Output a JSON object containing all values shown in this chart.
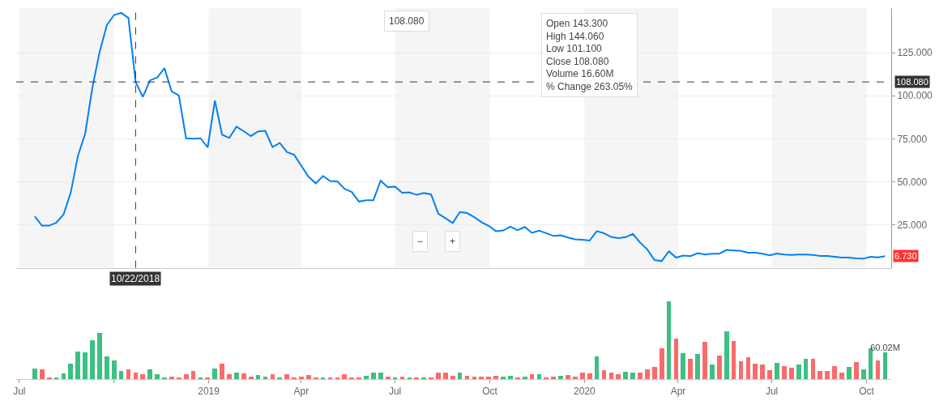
{
  "chart_data": [
    {
      "type": "line",
      "color": "#0081f2",
      "x": [
        "2018-07-16",
        "2018-07-23",
        "2018-07-30",
        "2018-08-06",
        "2018-08-13",
        "2018-08-20",
        "2018-08-27",
        "2018-09-03",
        "2018-09-10",
        "2018-09-17",
        "2018-09-24",
        "2018-10-01",
        "2018-10-08",
        "2018-10-15",
        "2018-10-22",
        "2018-10-29",
        "2018-11-05",
        "2018-11-12",
        "2018-11-19",
        "2018-11-26",
        "2018-12-03",
        "2018-12-10",
        "2018-12-17",
        "2018-12-24",
        "2018-12-31",
        "2019-01-07",
        "2019-01-14",
        "2019-01-21",
        "2019-01-28",
        "2019-02-04",
        "2019-02-11",
        "2019-02-18",
        "2019-02-25",
        "2019-03-04",
        "2019-03-11",
        "2019-03-18",
        "2019-03-25",
        "2019-04-01",
        "2019-04-08",
        "2019-04-15",
        "2019-04-22",
        "2019-04-29",
        "2019-05-06",
        "2019-05-13",
        "2019-05-20",
        "2019-05-27",
        "2019-06-03",
        "2019-06-10",
        "2019-06-17",
        "2019-06-24",
        "2019-07-01",
        "2019-07-08",
        "2019-07-15",
        "2019-07-22",
        "2019-07-29",
        "2019-08-05",
        "2019-08-12",
        "2019-08-19",
        "2019-08-26",
        "2019-09-02",
        "2019-09-09",
        "2019-09-16",
        "2019-09-23",
        "2019-09-30",
        "2019-10-07",
        "2019-10-14",
        "2019-10-21",
        "2019-10-28",
        "2019-11-04",
        "2019-11-11",
        "2019-11-18",
        "2019-11-25",
        "2019-12-02",
        "2019-12-09",
        "2019-12-16",
        "2019-12-23",
        "2019-12-30",
        "2020-01-06",
        "2020-01-13",
        "2020-01-20",
        "2020-01-27",
        "2020-02-03",
        "2020-02-10",
        "2020-02-17",
        "2020-02-24",
        "2020-03-02",
        "2020-03-09",
        "2020-03-16",
        "2020-03-23",
        "2020-03-30",
        "2020-04-06",
        "2020-04-13",
        "2020-04-20",
        "2020-04-27",
        "2020-05-04",
        "2020-05-11",
        "2020-05-18",
        "2020-05-25",
        "2020-06-01",
        "2020-06-08",
        "2020-06-15",
        "2020-06-22",
        "2020-06-29",
        "2020-07-06",
        "2020-07-13",
        "2020-07-20",
        "2020-07-27",
        "2020-08-03",
        "2020-08-10",
        "2020-08-17",
        "2020-08-24",
        "2020-08-31",
        "2020-09-07",
        "2020-09-14",
        "2020-09-21",
        "2020-09-28",
        "2020-10-05",
        "2020-10-12",
        "2020-10-19"
      ],
      "values": [
        29.9,
        24.5,
        24.5,
        26.2,
        31.0,
        43.8,
        65.2,
        78.0,
        104.7,
        125.5,
        141,
        147,
        148.2,
        145.3,
        108.08,
        99.4,
        109,
        110.6,
        116.1,
        102.6,
        100.2,
        75.3,
        75.0,
        75.3,
        70.0,
        97.2,
        77.4,
        75.5,
        82.1,
        79.4,
        76.6,
        79.3,
        79.6,
        70.2,
        72.6,
        67.3,
        65.7,
        59.3,
        52.9,
        49.1,
        53.4,
        50.4,
        50.2,
        45.9,
        44.0,
        38.5,
        39.2,
        39.3,
        50.7,
        46.8,
        47.2,
        43.6,
        43.8,
        42.4,
        43.5,
        42.7,
        31.5,
        28.8,
        26.0,
        32.4,
        31.8,
        29.4,
        26.5,
        24.4,
        21.3,
        21.7,
        23.9,
        21.9,
        23.7,
        20.3,
        21.6,
        20.1,
        18.5,
        18.9,
        17.6,
        16.5,
        16.3,
        15.8,
        21.3,
        20.1,
        17.9,
        17.3,
        17.8,
        19.7,
        14.7,
        10.7,
        4.5,
        3.9,
        9.6,
        5.9,
        7.1,
        6.8,
        8.5,
        7.7,
        8.2,
        8.2,
        10.4,
        10.1,
        9.8,
        8.8,
        8.8,
        8.2,
        7.2,
        8.3,
        7.7,
        7.5,
        7.7,
        7.7,
        7.5,
        6.9,
        6.9,
        6.4,
        5.9,
        5.9,
        5.5,
        5.3,
        6.4,
        6.1,
        6.73
      ],
      "xlim": [
        "2018-06-28",
        "2020-10-25"
      ],
      "ylim": [
        0,
        151
      ],
      "yticks": [
        {
          "value": 25,
          "label": "25.000"
        },
        {
          "value": 50,
          "label": "50.000"
        },
        {
          "value": 75,
          "label": "75.000"
        },
        {
          "value": 100,
          "label": "100.000"
        },
        {
          "value": 125,
          "label": "125.000"
        }
      ],
      "grid": "y",
      "tick_labels": "y",
      "ref_lines": [
        {
          "axis": "x",
          "value": "2018-10-22",
          "label": "10/22/2018",
          "color": "#333333",
          "line_style": "dashed"
        },
        {
          "axis": "y",
          "value": 108.08,
          "label": "108.080",
          "color": "#333333",
          "line_style": "dashed"
        }
      ],
      "bands": [
        {
          "axis": "x",
          "from": "2018-07-01",
          "to": "2018-10-01",
          "color": "#f5f5f5"
        },
        {
          "axis": "x",
          "from": "2019-01-01",
          "to": "2019-04-01",
          "color": "#f5f5f5"
        },
        {
          "axis": "x",
          "from": "2019-07-01",
          "to": "2019-10-01",
          "color": "#f5f5f5"
        },
        {
          "axis": "x",
          "from": "2020-01-01",
          "to": "2020-04-01",
          "color": "#f5f5f5"
        },
        {
          "axis": "x",
          "from": "2020-07-01",
          "to": "2020-10-01",
          "color": "#f5f5f5"
        }
      ],
      "annotations": [
        "Open 143.300\nHigh 144.060\nLow 101.100\nClose 108.080\nVolume 16.60M\n% Change 263.05%",
        "108.080",
        {
          "text": "6.730",
          "x": "2020-10-19",
          "y": 6.73
        },
        "−",
        "+"
      ]
    },
    {
      "type": "bar",
      "tick_labels": "x",
      "x": [
        "2018-07-16",
        "2018-07-23",
        "2018-07-30",
        "2018-08-06",
        "2018-08-13",
        "2018-08-20",
        "2018-08-27",
        "2018-09-03",
        "2018-09-10",
        "2018-09-17",
        "2018-09-24",
        "2018-10-01",
        "2018-10-08",
        "2018-10-15",
        "2018-10-22",
        "2018-10-29",
        "2018-11-05",
        "2018-11-12",
        "2018-11-19",
        "2018-11-26",
        "2018-12-03",
        "2018-12-10",
        "2018-12-17",
        "2018-12-24",
        "2018-12-31",
        "2019-01-07",
        "2019-01-14",
        "2019-01-21",
        "2019-01-28",
        "2019-02-04",
        "2019-02-11",
        "2019-02-18",
        "2019-02-25",
        "2019-03-04",
        "2019-03-11",
        "2019-03-18",
        "2019-03-25",
        "2019-04-01",
        "2019-04-08",
        "2019-04-15",
        "2019-04-22",
        "2019-04-29",
        "2019-05-06",
        "2019-05-13",
        "2019-05-20",
        "2019-05-27",
        "2019-06-03",
        "2019-06-10",
        "2019-06-17",
        "2019-06-24",
        "2019-07-01",
        "2019-07-08",
        "2019-07-15",
        "2019-07-22",
        "2019-07-29",
        "2019-08-05",
        "2019-08-12",
        "2019-08-19",
        "2019-08-26",
        "2019-09-02",
        "2019-09-09",
        "2019-09-16",
        "2019-09-23",
        "2019-09-30",
        "2019-10-07",
        "2019-10-14",
        "2019-10-21",
        "2019-10-28",
        "2019-11-04",
        "2019-11-11",
        "2019-11-18",
        "2019-11-25",
        "2019-12-02",
        "2019-12-09",
        "2019-12-16",
        "2019-12-23",
        "2019-12-30",
        "2020-01-06",
        "2020-01-13",
        "2020-01-20",
        "2020-01-27",
        "2020-02-03",
        "2020-02-10",
        "2020-02-17",
        "2020-02-24",
        "2020-03-02",
        "2020-03-09",
        "2020-03-16",
        "2020-03-23",
        "2020-03-30",
        "2020-04-06",
        "2020-04-13",
        "2020-04-20",
        "2020-04-27",
        "2020-05-04",
        "2020-05-11",
        "2020-05-18",
        "2020-05-25",
        "2020-06-01",
        "2020-06-08",
        "2020-06-15",
        "2020-06-22",
        "2020-06-29",
        "2020-07-06",
        "2020-07-13",
        "2020-07-20",
        "2020-07-27",
        "2020-08-03",
        "2020-08-10",
        "2020-08-17",
        "2020-08-24",
        "2020-08-31",
        "2020-09-07",
        "2020-09-14",
        "2020-09-21",
        "2020-09-28",
        "2020-10-05",
        "2020-10-12",
        "2020-10-19"
      ],
      "values": [
        24,
        21,
        4,
        3,
        12,
        34,
        61,
        59,
        87,
        102,
        50,
        42,
        18,
        22,
        15,
        10,
        21,
        11,
        4,
        6,
        4,
        10,
        18,
        3,
        3,
        24,
        34,
        10,
        14,
        12,
        6,
        8,
        6,
        10,
        4,
        11,
        4,
        6,
        8,
        4,
        4,
        3,
        4,
        10,
        3,
        3,
        7,
        14,
        14,
        5,
        3,
        5,
        3,
        3,
        2,
        3,
        15,
        15,
        7,
        15,
        7,
        5,
        5,
        5,
        7,
        5,
        7,
        3,
        5,
        11,
        11,
        3,
        5,
        7,
        9,
        5,
        14,
        12,
        50,
        19,
        14,
        10,
        16,
        15,
        14,
        22,
        27,
        68,
        172,
        90,
        58,
        44,
        56,
        82,
        33,
        52,
        106,
        84,
        39,
        49,
        34,
        33,
        19,
        36,
        28,
        25,
        32,
        44,
        45,
        18,
        18,
        28,
        14,
        26,
        37,
        21,
        68,
        41,
        60.02
      ],
      "colors": [
        "#3ebf83",
        "#f96b6b",
        "#f96b6b",
        "#3ebf83",
        "#3ebf83",
        "#3ebf83",
        "#3ebf83",
        "#3ebf83",
        "#3ebf83",
        "#3ebf83",
        "#3ebf83",
        "#3ebf83",
        "#3ebf83",
        "#f96b6b",
        "#f96b6b",
        "#f96b6b",
        "#3ebf83",
        "#3ebf83",
        "#3ebf83",
        "#f96b6b",
        "#f96b6b",
        "#f96b6b",
        "#f96b6b",
        "#3ebf83",
        "#f96b6b",
        "#3ebf83",
        "#f96b6b",
        "#f96b6b",
        "#3ebf83",
        "#f96b6b",
        "#f96b6b",
        "#3ebf83",
        "#3ebf83",
        "#f96b6b",
        "#3ebf83",
        "#f96b6b",
        "#f96b6b",
        "#f96b6b",
        "#f96b6b",
        "#f96b6b",
        "#3ebf83",
        "#f96b6b",
        "#f96b6b",
        "#f96b6b",
        "#f96b6b",
        "#f96b6b",
        "#3ebf83",
        "#3ebf83",
        "#3ebf83",
        "#f96b6b",
        "#3ebf83",
        "#f96b6b",
        "#3ebf83",
        "#f96b6b",
        "#3ebf83",
        "#f96b6b",
        "#f96b6b",
        "#f96b6b",
        "#f96b6b",
        "#3ebf83",
        "#f96b6b",
        "#f96b6b",
        "#f96b6b",
        "#f96b6b",
        "#f96b6b",
        "#3ebf83",
        "#3ebf83",
        "#f96b6b",
        "#3ebf83",
        "#f96b6b",
        "#3ebf83",
        "#f96b6b",
        "#f96b6b",
        "#3ebf83",
        "#f96b6b",
        "#f96b6b",
        "#f96b6b",
        "#f96b6b",
        "#3ebf83",
        "#f96b6b",
        "#f96b6b",
        "#f96b6b",
        "#3ebf83",
        "#3ebf83",
        "#f96b6b",
        "#f96b6b",
        "#f96b6b",
        "#f96b6b",
        "#3ebf83",
        "#f96b6b",
        "#3ebf83",
        "#f96b6b",
        "#3ebf83",
        "#f96b6b",
        "#3ebf83",
        "#f96b6b",
        "#3ebf83",
        "#f96b6b",
        "#f96b6b",
        "#f96b6b",
        "#f96b6b",
        "#f96b6b",
        "#f96b6b",
        "#3ebf83",
        "#f96b6b",
        "#f96b6b",
        "#3ebf83",
        "#3ebf83",
        "#f96b6b",
        "#f96b6b",
        "#f96b6b",
        "#f96b6b",
        "#f96b6b",
        "#3ebf83",
        "#f96b6b",
        "#3ebf83",
        "#3ebf83",
        "#f96b6b",
        "#3ebf83"
      ],
      "value_labels": [
        null,
        null,
        null,
        null,
        null,
        null,
        null,
        null,
        null,
        null,
        null,
        null,
        null,
        null,
        null,
        null,
        null,
        null,
        null,
        null,
        null,
        null,
        null,
        null,
        null,
        null,
        null,
        null,
        null,
        null,
        null,
        null,
        null,
        null,
        null,
        null,
        null,
        null,
        null,
        null,
        null,
        null,
        null,
        null,
        null,
        null,
        null,
        null,
        null,
        null,
        null,
        null,
        null,
        null,
        null,
        null,
        null,
        null,
        null,
        null,
        null,
        null,
        null,
        null,
        null,
        null,
        null,
        null,
        null,
        null,
        null,
        null,
        null,
        null,
        null,
        null,
        null,
        null,
        null,
        null,
        null,
        null,
        null,
        null,
        null,
        null,
        null,
        null,
        null,
        null,
        null,
        null,
        null,
        null,
        null,
        null,
        null,
        null,
        null,
        null,
        null,
        null,
        null,
        null,
        null,
        null,
        null,
        null,
        null,
        null,
        null,
        null,
        null,
        null,
        null,
        null,
        null,
        null,
        "60.02M"
      ],
      "xlim": [
        "2018-06-28",
        "2020-10-25"
      ],
      "xticks": [
        {
          "value": "2018-07-01",
          "label": "Jul"
        },
        {
          "value": "2018-10-01",
          "label": null
        },
        {
          "value": "2019-01-01",
          "label": "2019"
        },
        {
          "value": "2019-04-01",
          "label": "Apr"
        },
        {
          "value": "2019-07-01",
          "label": "Jul"
        },
        {
          "value": "2019-10-01",
          "label": "Oct"
        },
        {
          "value": "2020-01-01",
          "label": "2020"
        },
        {
          "value": "2020-04-01",
          "label": "Apr"
        },
        {
          "value": "2020-07-01",
          "label": "Jul"
        },
        {
          "value": "2020-10-01",
          "label": "Oct"
        }
      ]
    }
  ]
}
